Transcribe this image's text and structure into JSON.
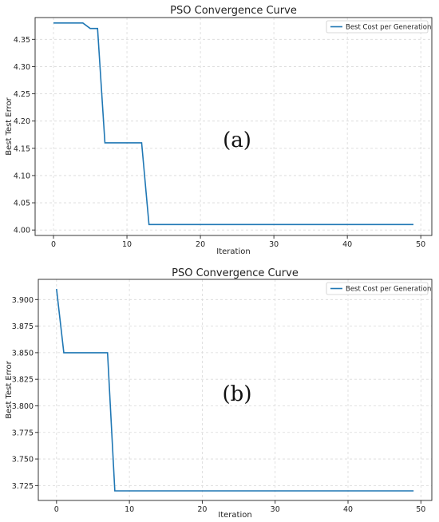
{
  "chart_data": [
    {
      "type": "line",
      "panel": "(a)",
      "title": "PSO Convergence Curve",
      "xlabel": "Iteration",
      "ylabel": "Best Test Error",
      "xlim": [
        -2.5,
        51.5
      ],
      "ylim": [
        3.99,
        4.39
      ],
      "xticks": [
        0,
        10,
        20,
        30,
        40,
        50
      ],
      "yticks": [
        4.0,
        4.05,
        4.1,
        4.15,
        4.2,
        4.25,
        4.3,
        4.35
      ],
      "ytick_decimals": 2,
      "grid": true,
      "legend_position": "top-right",
      "series": [
        {
          "name": "Best Cost per Generation",
          "color": "#1f77b4",
          "x": [
            0,
            1,
            2,
            3,
            4,
            5,
            6,
            7,
            8,
            9,
            10,
            11,
            12,
            13,
            14,
            15,
            16,
            17,
            18,
            19,
            20,
            21,
            22,
            23,
            24,
            25,
            26,
            27,
            28,
            29,
            30,
            31,
            32,
            33,
            34,
            35,
            36,
            37,
            38,
            39,
            40,
            41,
            42,
            43,
            44,
            45,
            46,
            47,
            48,
            49
          ],
          "y": [
            4.38,
            4.38,
            4.38,
            4.38,
            4.38,
            4.37,
            4.37,
            4.16,
            4.16,
            4.16,
            4.16,
            4.16,
            4.16,
            4.01,
            4.01,
            4.01,
            4.01,
            4.01,
            4.01,
            4.01,
            4.01,
            4.01,
            4.01,
            4.01,
            4.01,
            4.01,
            4.01,
            4.01,
            4.01,
            4.01,
            4.01,
            4.01,
            4.01,
            4.01,
            4.01,
            4.01,
            4.01,
            4.01,
            4.01,
            4.01,
            4.01,
            4.01,
            4.01,
            4.01,
            4.01,
            4.01,
            4.01,
            4.01,
            4.01,
            4.01
          ]
        }
      ]
    },
    {
      "type": "line",
      "panel": "(b)",
      "title": "PSO Convergence Curve",
      "xlabel": "Iteration",
      "ylabel": "Best Test Error",
      "xlim": [
        -2.5,
        51.5
      ],
      "ylim": [
        3.711,
        3.919
      ],
      "xticks": [
        0,
        10,
        20,
        30,
        40,
        50
      ],
      "yticks": [
        3.725,
        3.75,
        3.775,
        3.8,
        3.825,
        3.85,
        3.875,
        3.9
      ],
      "ytick_decimals": 3,
      "grid": true,
      "legend_position": "top-right",
      "series": [
        {
          "name": "Best Cost per Generation",
          "color": "#1f77b4",
          "x": [
            0,
            1,
            2,
            3,
            4,
            5,
            6,
            7,
            8,
            9,
            10,
            11,
            12,
            13,
            14,
            15,
            16,
            17,
            18,
            19,
            20,
            21,
            22,
            23,
            24,
            25,
            26,
            27,
            28,
            29,
            30,
            31,
            32,
            33,
            34,
            35,
            36,
            37,
            38,
            39,
            40,
            41,
            42,
            43,
            44,
            45,
            46,
            47,
            48,
            49
          ],
          "y": [
            3.91,
            3.85,
            3.85,
            3.85,
            3.85,
            3.85,
            3.85,
            3.85,
            3.72,
            3.72,
            3.72,
            3.72,
            3.72,
            3.72,
            3.72,
            3.72,
            3.72,
            3.72,
            3.72,
            3.72,
            3.72,
            3.72,
            3.72,
            3.72,
            3.72,
            3.72,
            3.72,
            3.72,
            3.72,
            3.72,
            3.72,
            3.72,
            3.72,
            3.72,
            3.72,
            3.72,
            3.72,
            3.72,
            3.72,
            3.72,
            3.72,
            3.72,
            3.72,
            3.72,
            3.72,
            3.72,
            3.72,
            3.72,
            3.72,
            3.72
          ]
        }
      ]
    }
  ]
}
